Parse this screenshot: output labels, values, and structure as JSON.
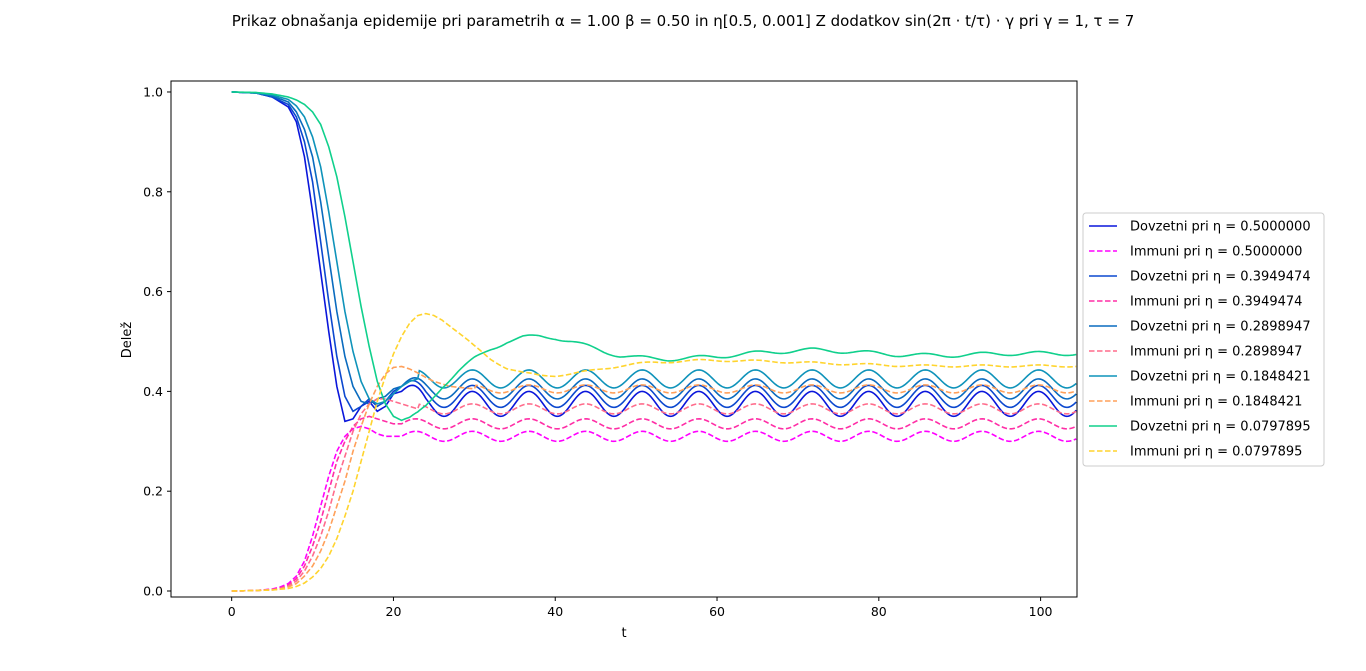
{
  "chart_data": {
    "type": "line",
    "title": "Prikaz obnašanja epidemije pri parametrih α = 1.00 β = 0.50 in η[0.5, 0.001] Z dodatkov sin(2π · t/τ) · γ pri γ = 1, τ = 7",
    "xlabel": "t",
    "ylabel": "Delež",
    "xlim": [
      -7.5,
      104.5
    ],
    "ylim": [
      -0.012,
      1.022
    ],
    "xticks": [
      "0",
      "20",
      "40",
      "60",
      "80",
      "100"
    ],
    "yticks": [
      "0.0",
      "0.2",
      "0.4",
      "0.6",
      "0.8",
      "1.0"
    ],
    "grid": false,
    "legend_position": "center-right-outside",
    "series": [
      {
        "name": "Dovzetni pri η = 0.5000000",
        "style": "solid",
        "color": "#0a16db",
        "baseline": 0.375,
        "amplitude": 0.025,
        "x": [
          0,
          3,
          5,
          7,
          8,
          9,
          10,
          11,
          12,
          13,
          14,
          15,
          16,
          17,
          18,
          19,
          20,
          21
        ],
        "y": [
          1.0,
          0.998,
          0.99,
          0.97,
          0.94,
          0.87,
          0.76,
          0.64,
          0.52,
          0.41,
          0.34,
          0.345,
          0.37,
          0.38,
          0.36,
          0.37,
          0.395,
          0.4
        ]
      },
      {
        "name": "Immuni pri η = 0.5000000",
        "style": "dashed",
        "color": "#ff00ff",
        "baseline": 0.31,
        "amplitude": 0.01,
        "x": [
          0,
          3,
          5,
          6,
          7,
          8,
          9,
          10,
          11,
          12,
          13,
          14,
          15,
          16,
          17,
          18,
          19,
          20,
          21
        ],
        "y": [
          0.0,
          0.001,
          0.004,
          0.008,
          0.015,
          0.03,
          0.06,
          0.11,
          0.17,
          0.23,
          0.28,
          0.31,
          0.325,
          0.33,
          0.325,
          0.315,
          0.31,
          0.31,
          0.31
        ]
      },
      {
        "name": "Dovzetni pri η = 0.3949474",
        "style": "solid",
        "color": "#0c48cf",
        "baseline": 0.39,
        "amplitude": 0.022,
        "x": [
          0,
          3,
          5,
          7,
          8,
          9,
          10,
          11,
          12,
          13,
          14,
          15,
          16,
          17,
          18,
          19,
          20,
          21
        ],
        "y": [
          1.0,
          0.998,
          0.99,
          0.975,
          0.95,
          0.9,
          0.82,
          0.7,
          0.58,
          0.47,
          0.39,
          0.36,
          0.37,
          0.385,
          0.37,
          0.38,
          0.4,
          0.41
        ]
      },
      {
        "name": "Immuni pri η = 0.3949474",
        "style": "dashed",
        "color": "#ff2ea6",
        "baseline": 0.335,
        "amplitude": 0.01,
        "x": [
          0,
          3,
          5,
          6,
          7,
          8,
          9,
          10,
          11,
          12,
          13,
          14,
          15,
          16,
          17,
          18,
          19,
          20,
          21
        ],
        "y": [
          0.0,
          0.001,
          0.003,
          0.006,
          0.012,
          0.025,
          0.05,
          0.09,
          0.14,
          0.2,
          0.26,
          0.3,
          0.33,
          0.345,
          0.35,
          0.345,
          0.34,
          0.335,
          0.335
        ]
      },
      {
        "name": "Dovzetni pri η = 0.2898947",
        "style": "solid",
        "color": "#0a6bbf",
        "baseline": 0.405,
        "amplitude": 0.02,
        "x": [
          0,
          3,
          5,
          7,
          8,
          9,
          10,
          11,
          12,
          13,
          14,
          15,
          16,
          17,
          18,
          19,
          20,
          21
        ],
        "y": [
          1.0,
          0.998,
          0.992,
          0.98,
          0.96,
          0.925,
          0.87,
          0.78,
          0.67,
          0.56,
          0.47,
          0.41,
          0.38,
          0.375,
          0.385,
          0.39,
          0.405,
          0.41
        ]
      },
      {
        "name": "Immuni pri η = 0.2898947",
        "style": "dashed",
        "color": "#ff6c8c",
        "baseline": 0.365,
        "amplitude": 0.01,
        "x": [
          0,
          3,
          5,
          6,
          7,
          8,
          9,
          10,
          11,
          12,
          13,
          14,
          15,
          16,
          17,
          18,
          19,
          20,
          21,
          22,
          23
        ],
        "y": [
          0.0,
          0.001,
          0.003,
          0.005,
          0.01,
          0.02,
          0.04,
          0.07,
          0.11,
          0.16,
          0.22,
          0.27,
          0.32,
          0.355,
          0.375,
          0.385,
          0.385,
          0.38,
          0.375,
          0.37,
          0.365
        ]
      },
      {
        "name": "Dovzetni pri η = 0.1848421",
        "style": "solid",
        "color": "#0f93ba",
        "baseline": 0.425,
        "amplitude": 0.018,
        "x": [
          0,
          3,
          5,
          7,
          8,
          9,
          10,
          11,
          12,
          13,
          14,
          15,
          16,
          17,
          18,
          19,
          20,
          21,
          22,
          23
        ],
        "y": [
          1.0,
          0.998,
          0.994,
          0.985,
          0.972,
          0.95,
          0.91,
          0.85,
          0.76,
          0.66,
          0.56,
          0.48,
          0.42,
          0.385,
          0.375,
          0.38,
          0.395,
          0.41,
          0.42,
          0.425
        ]
      },
      {
        "name": "Immuni pri η = 0.1848421",
        "style": "dashed",
        "color": "#ffa05a",
        "baseline": 0.405,
        "amplitude": 0.008,
        "x": [
          0,
          3,
          5,
          6,
          7,
          8,
          9,
          10,
          11,
          12,
          13,
          14,
          15,
          16,
          17,
          18,
          19,
          20,
          21,
          22,
          23,
          24,
          25,
          27,
          30
        ],
        "y": [
          0.0,
          0.001,
          0.002,
          0.004,
          0.008,
          0.015,
          0.03,
          0.05,
          0.08,
          0.12,
          0.17,
          0.22,
          0.28,
          0.33,
          0.375,
          0.41,
          0.435,
          0.448,
          0.45,
          0.445,
          0.437,
          0.428,
          0.42,
          0.41,
          0.405
        ]
      },
      {
        "name": "Dovzetni pri η = 0.0797895",
        "style": "solid",
        "color": "#10d08c",
        "baseline": null,
        "amplitude": 0.004,
        "x": [
          0,
          3,
          5,
          7,
          8,
          9,
          10,
          11,
          12,
          13,
          14,
          15,
          16,
          17,
          18,
          19,
          20,
          21,
          22,
          23,
          24,
          25,
          26,
          28,
          30,
          32,
          34,
          36,
          38,
          40,
          42,
          44,
          46,
          48,
          50,
          52,
          54,
          56,
          58,
          60,
          62,
          64,
          66,
          68,
          70,
          72,
          74,
          76,
          78,
          80,
          82,
          84,
          86,
          88,
          90,
          92,
          94,
          96,
          98,
          100,
          102,
          104.5
        ],
        "y": [
          1.0,
          0.999,
          0.996,
          0.99,
          0.984,
          0.975,
          0.96,
          0.935,
          0.89,
          0.83,
          0.75,
          0.66,
          0.57,
          0.49,
          0.42,
          0.375,
          0.35,
          0.342,
          0.345,
          0.355,
          0.37,
          0.39,
          0.41,
          0.44,
          0.465,
          0.485,
          0.5,
          0.508,
          0.51,
          0.508,
          0.5,
          0.49,
          0.48,
          0.472,
          0.468,
          0.466,
          0.465,
          0.466,
          0.468,
          0.47,
          0.473,
          0.476,
          0.478,
          0.48,
          0.482,
          0.483,
          0.482,
          0.48,
          0.478,
          0.476,
          0.474,
          0.473,
          0.472,
          0.472,
          0.473,
          0.474,
          0.475,
          0.476,
          0.476,
          0.476,
          0.476,
          0.476
        ]
      },
      {
        "name": "Immuni pri η = 0.0797895",
        "style": "dashed",
        "color": "#ffd42e",
        "baseline": null,
        "amplitude": 0.002,
        "x": [
          0,
          3,
          5,
          7,
          8,
          9,
          10,
          11,
          12,
          13,
          14,
          15,
          16,
          17,
          18,
          19,
          20,
          21,
          22,
          23,
          24,
          25,
          26,
          27,
          28,
          30,
          32,
          34,
          36,
          38,
          40,
          42,
          44,
          46,
          48,
          50,
          52,
          55,
          58,
          61,
          64,
          67,
          70,
          74,
          78,
          82,
          86,
          90,
          95,
          100,
          104.5
        ],
        "y": [
          0.0,
          0.001,
          0.002,
          0.005,
          0.009,
          0.016,
          0.028,
          0.045,
          0.07,
          0.105,
          0.15,
          0.2,
          0.26,
          0.32,
          0.38,
          0.43,
          0.475,
          0.51,
          0.535,
          0.55,
          0.555,
          0.553,
          0.545,
          0.532,
          0.518,
          0.49,
          0.465,
          0.447,
          0.437,
          0.432,
          0.432,
          0.435,
          0.44,
          0.446,
          0.451,
          0.455,
          0.458,
          0.46,
          0.462,
          0.462,
          0.461,
          0.46,
          0.458,
          0.456,
          0.454,
          0.452,
          0.451,
          0.451,
          0.451,
          0.451,
          0.451
        ]
      }
    ],
    "oscillation_period": 7,
    "oscillation_start": 21
  }
}
